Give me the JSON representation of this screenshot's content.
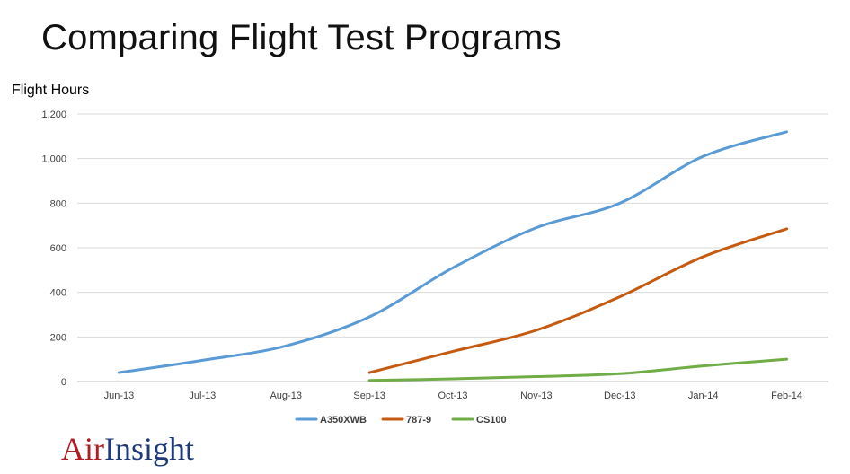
{
  "header": {
    "title": "Comparing Flight Test Programs"
  },
  "logo": {
    "part1": "Air",
    "part2": "Insight",
    "colors": {
      "air": "#b01c22",
      "insight": "#1e3a78"
    }
  },
  "chart_data": {
    "type": "line",
    "title": "",
    "xlabel": "",
    "ylabel": "Flight Hours",
    "categories": [
      "Jun-13",
      "Jul-13",
      "Aug-13",
      "Sep-13",
      "Oct-13",
      "Nov-13",
      "Dec-13",
      "Jan-14",
      "Feb-14"
    ],
    "ylim": [
      0,
      1200
    ],
    "yticks": [
      0,
      200,
      400,
      600,
      800,
      1000,
      1200
    ],
    "ytick_labels": [
      "0",
      "200",
      "400",
      "600",
      "800",
      "1,000",
      "1,200"
    ],
    "grid": true,
    "legend_position": "bottom",
    "smooth": true,
    "series": [
      {
        "name": "A350XWB",
        "color": "#5b9bd5",
        "values": [
          40,
          95,
          160,
          290,
          510,
          690,
          800,
          1010,
          1120
        ]
      },
      {
        "name": "787-9",
        "color": "#c55a11",
        "values": [
          null,
          null,
          null,
          40,
          135,
          230,
          380,
          560,
          685
        ]
      },
      {
        "name": "CS100",
        "color": "#70ad47",
        "values": [
          null,
          null,
          null,
          5,
          12,
          22,
          35,
          70,
          100
        ]
      }
    ]
  }
}
